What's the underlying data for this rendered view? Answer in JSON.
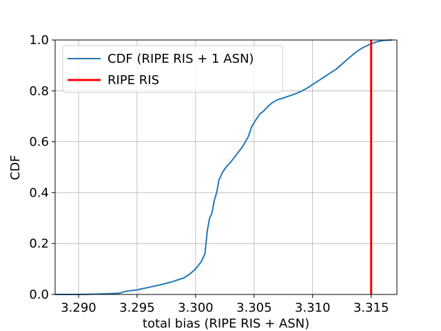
{
  "chart_data": {
    "type": "line",
    "title": "",
    "xlabel": "total bias (RIPE RIS + ASN)",
    "ylabel": "CDF",
    "xlim": [
      3.288,
      3.3172
    ],
    "ylim": [
      0.0,
      1.0
    ],
    "xticks": [
      3.29,
      3.295,
      3.3,
      3.305,
      3.31,
      3.315
    ],
    "xtick_labels": [
      "3.290",
      "3.295",
      "3.300",
      "3.305",
      "3.310",
      "3.315"
    ],
    "yticks": [
      0.0,
      0.2,
      0.4,
      0.6,
      0.8,
      1.0
    ],
    "ytick_labels": [
      "0.0",
      "0.2",
      "0.4",
      "0.6",
      "0.8",
      "1.0"
    ],
    "grid": true,
    "legend_position": "upper-left",
    "series": [
      {
        "name": "CDF (RIPE RIS + 1 ASN)",
        "color": "#1f77b4",
        "kind": "line",
        "x": [
          3.288,
          3.29,
          3.292,
          3.2935,
          3.294,
          3.295,
          3.296,
          3.297,
          3.298,
          3.299,
          3.2995,
          3.3,
          3.3005,
          3.3008,
          3.301,
          3.3012,
          3.3014,
          3.3016,
          3.3018,
          3.302,
          3.3023,
          3.3026,
          3.303,
          3.3035,
          3.304,
          3.3045,
          3.3048,
          3.3052,
          3.3055,
          3.3058,
          3.3062,
          3.3066,
          3.307,
          3.3075,
          3.308,
          3.3085,
          3.309,
          3.3095,
          3.31,
          3.3105,
          3.311,
          3.3115,
          3.312,
          3.3125,
          3.313,
          3.3135,
          3.314,
          3.3145,
          3.315,
          3.3155,
          3.316,
          3.3168
        ],
        "y": [
          0.0,
          0.0,
          0.002,
          0.005,
          0.012,
          0.018,
          0.028,
          0.038,
          0.05,
          0.065,
          0.08,
          0.1,
          0.13,
          0.16,
          0.25,
          0.3,
          0.32,
          0.37,
          0.4,
          0.45,
          0.48,
          0.5,
          0.52,
          0.55,
          0.58,
          0.62,
          0.66,
          0.69,
          0.71,
          0.72,
          0.74,
          0.755,
          0.765,
          0.772,
          0.78,
          0.788,
          0.798,
          0.81,
          0.825,
          0.84,
          0.855,
          0.87,
          0.885,
          0.905,
          0.925,
          0.945,
          0.962,
          0.975,
          0.985,
          0.993,
          0.998,
          1.0
        ]
      },
      {
        "name": "RIPE RIS",
        "color": "#ff0000",
        "kind": "vline",
        "x": 3.315
      }
    ]
  }
}
